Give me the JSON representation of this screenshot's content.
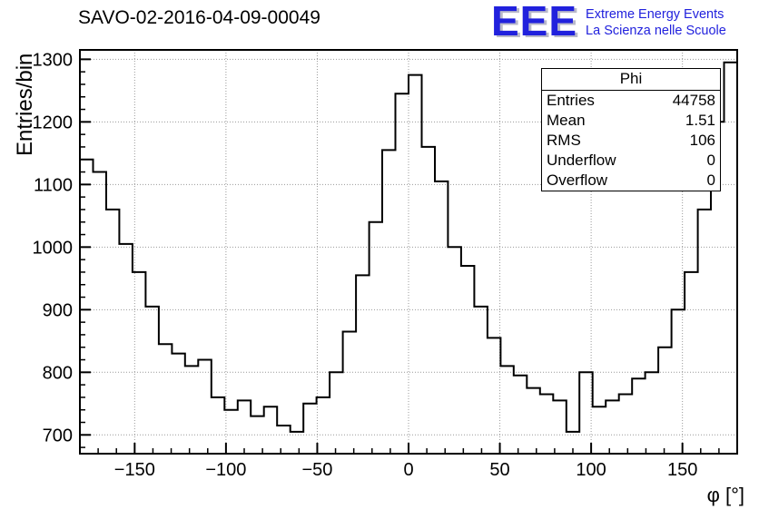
{
  "title": "SAVO-02-2016-04-09-00049",
  "logo": {
    "eee": "EEE",
    "line1": "Extreme Energy Events",
    "line2": "La Scienza nelle Scuole",
    "color": "#2121dd"
  },
  "stats": {
    "title": "Phi",
    "rows": [
      {
        "label": "Entries",
        "value": "44758"
      },
      {
        "label": "Mean",
        "value": "1.51"
      },
      {
        "label": "RMS",
        "value": "106"
      },
      {
        "label": "Underflow",
        "value": "0"
      },
      {
        "label": "Overflow",
        "value": "0"
      }
    ]
  },
  "chart_data": {
    "type": "bar",
    "subtype": "step-histogram",
    "title": "SAVO-02-2016-04-09-00049",
    "xlabel": "φ [°]",
    "ylabel": "Entries/bin",
    "xlim": [
      -180,
      180
    ],
    "ylim": [
      670,
      1315
    ],
    "bin_start": -180,
    "bin_width": 7.2,
    "x_ticks": [
      -150,
      -100,
      -50,
      0,
      50,
      100,
      150
    ],
    "y_ticks": [
      700,
      800,
      900,
      1000,
      1100,
      1200,
      1300
    ],
    "x_minor_step": 10,
    "y_minor_step": 20,
    "grid": true,
    "line_color": "#000000",
    "grid_color": "#999999",
    "values": [
      1140,
      1120,
      1060,
      1005,
      960,
      905,
      845,
      830,
      810,
      820,
      760,
      740,
      755,
      730,
      745,
      715,
      705,
      750,
      760,
      800,
      865,
      955,
      1040,
      1155,
      1245,
      1275,
      1160,
      1105,
      1000,
      970,
      905,
      855,
      810,
      795,
      775,
      765,
      755,
      705,
      800,
      745,
      755,
      765,
      790,
      800,
      840,
      900,
      960,
      1060,
      1200,
      1295
    ]
  }
}
